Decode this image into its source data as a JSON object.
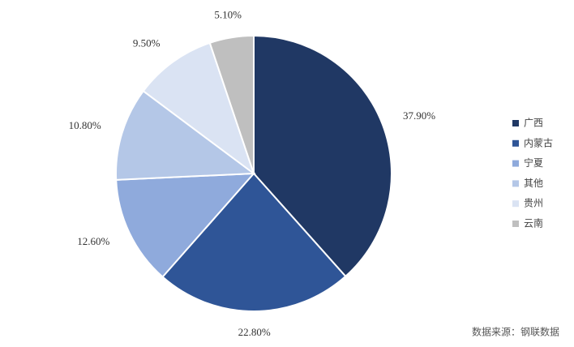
{
  "chart_data": {
    "type": "pie",
    "categories": [
      "广西",
      "内蒙古",
      "宁夏",
      "其他",
      "贵州",
      "云南"
    ],
    "values": [
      37.9,
      22.8,
      12.6,
      10.8,
      9.5,
      5.1
    ],
    "value_labels": [
      "37.90%",
      "22.80%",
      "12.60%",
      "10.80%",
      "9.50%",
      "5.10%"
    ],
    "colors": [
      "#203864",
      "#2f5597",
      "#8faadc",
      "#b4c7e7",
      "#dae3f3",
      "#bfbfbf"
    ],
    "legend": "right",
    "source": "数据来源：钢联数据"
  }
}
